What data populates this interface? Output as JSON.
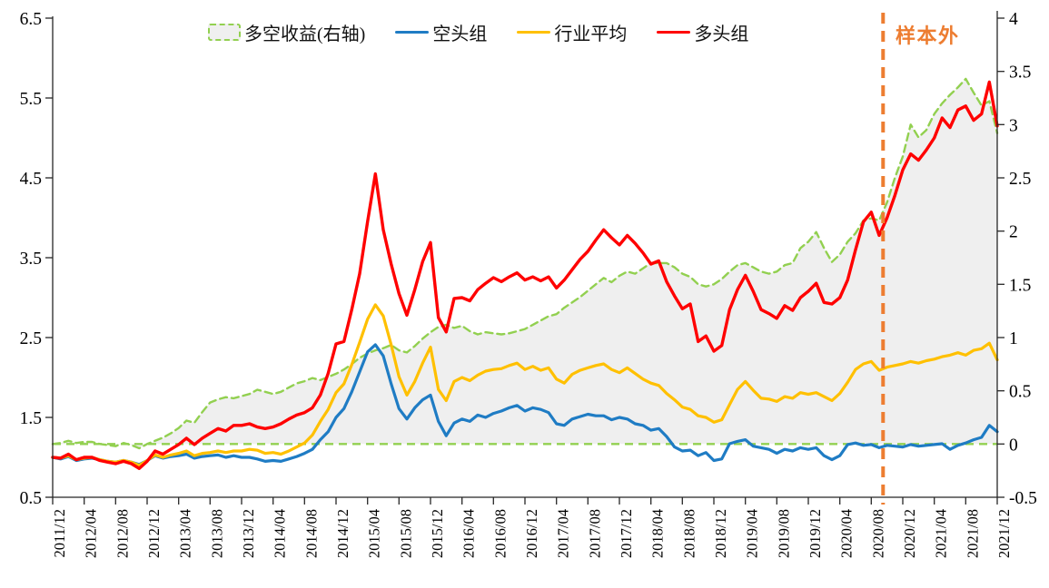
{
  "chart_data": {
    "type": "line",
    "title": "",
    "frequency": "monthly",
    "grid": false,
    "legend_position": "top",
    "background": "#ffffff",
    "months": [
      "2011/12",
      "2012/01",
      "2012/02",
      "2012/03",
      "2012/04",
      "2012/05",
      "2012/06",
      "2012/07",
      "2012/08",
      "2012/09",
      "2012/10",
      "2012/11",
      "2012/12",
      "2013/01",
      "2013/02",
      "2013/03",
      "2013/04",
      "2013/05",
      "2013/06",
      "2013/07",
      "2013/08",
      "2013/09",
      "2013/10",
      "2013/11",
      "2013/12",
      "2014/01",
      "2014/02",
      "2014/03",
      "2014/04",
      "2014/05",
      "2014/06",
      "2014/07",
      "2014/08",
      "2014/09",
      "2014/10",
      "2014/11",
      "2014/12",
      "2015/01",
      "2015/02",
      "2015/03",
      "2015/04",
      "2015/05",
      "2015/06",
      "2015/07",
      "2015/08",
      "2015/09",
      "2015/10",
      "2015/11",
      "2015/12",
      "2016/01",
      "2016/02",
      "2016/03",
      "2016/04",
      "2016/05",
      "2016/06",
      "2016/07",
      "2016/08",
      "2016/09",
      "2016/10",
      "2016/11",
      "2016/12",
      "2017/01",
      "2017/02",
      "2017/03",
      "2017/04",
      "2017/05",
      "2017/06",
      "2017/07",
      "2017/08",
      "2017/09",
      "2017/10",
      "2017/11",
      "2017/12",
      "2018/01",
      "2018/02",
      "2018/03",
      "2018/04",
      "2018/05",
      "2018/06",
      "2018/07",
      "2018/08",
      "2018/09",
      "2018/10",
      "2018/11",
      "2018/12",
      "2019/01",
      "2019/02",
      "2019/03",
      "2019/04",
      "2019/05",
      "2019/06",
      "2019/07",
      "2019/08",
      "2019/09",
      "2019/10",
      "2019/11",
      "2019/12",
      "2020/01",
      "2020/02",
      "2020/03",
      "2020/04",
      "2020/05",
      "2020/06",
      "2020/07",
      "2020/08",
      "2020/09",
      "2020/10",
      "2020/11",
      "2020/12",
      "2021/01",
      "2021/02",
      "2021/03",
      "2021/04",
      "2021/05",
      "2021/06",
      "2021/07",
      "2021/08",
      "2021/09",
      "2021/10",
      "2021/11",
      "2021/12"
    ],
    "x_tick_step": 4,
    "left_axis": {
      "min": 0.5,
      "max": 6.5,
      "ticks": [
        0.5,
        1.5,
        2.5,
        3.5,
        4.5,
        5.5,
        6.5
      ]
    },
    "right_axis": {
      "min": -0.5,
      "max": 4,
      "ticks": [
        -0.5,
        0,
        0.5,
        1,
        1.5,
        2,
        2.5,
        3,
        3.5,
        4
      ]
    },
    "baseline_right": 0,
    "sample_split": {
      "label": "样本外",
      "color": "#ED7D31",
      "month_index": 105.5,
      "between": [
        "2020/09",
        "2020/10"
      ]
    },
    "series": [
      {
        "name": "多空收益(右轴)",
        "key": "long-short-return",
        "axis": "right",
        "style": "dashed-area",
        "color": "#92D050",
        "fill": "#EFEFEF",
        "values": [
          0.0,
          0.01,
          0.03,
          0.01,
          0.02,
          0.02,
          0.0,
          -0.01,
          -0.02,
          0.01,
          -0.01,
          -0.04,
          0.0,
          0.03,
          0.06,
          0.1,
          0.15,
          0.22,
          0.2,
          0.3,
          0.39,
          0.42,
          0.44,
          0.43,
          0.45,
          0.47,
          0.51,
          0.49,
          0.47,
          0.49,
          0.53,
          0.57,
          0.59,
          0.62,
          0.6,
          0.63,
          0.66,
          0.7,
          0.75,
          0.81,
          0.85,
          0.88,
          0.9,
          0.93,
          0.88,
          0.86,
          0.92,
          0.99,
          1.05,
          1.1,
          1.12,
          1.09,
          1.11,
          1.06,
          1.03,
          1.05,
          1.04,
          1.03,
          1.04,
          1.06,
          1.08,
          1.12,
          1.16,
          1.2,
          1.22,
          1.28,
          1.33,
          1.38,
          1.44,
          1.5,
          1.56,
          1.52,
          1.58,
          1.62,
          1.6,
          1.65,
          1.7,
          1.7,
          1.7,
          1.66,
          1.6,
          1.57,
          1.5,
          1.48,
          1.5,
          1.55,
          1.62,
          1.68,
          1.7,
          1.66,
          1.62,
          1.6,
          1.62,
          1.68,
          1.7,
          1.84,
          1.9,
          1.99,
          1.84,
          1.71,
          1.78,
          1.9,
          1.98,
          2.1,
          2.12,
          2.1,
          2.27,
          2.5,
          2.7,
          3.0,
          2.88,
          2.95,
          3.1,
          3.2,
          3.28,
          3.35,
          3.43,
          3.3,
          3.18,
          3.22,
          2.92
        ]
      },
      {
        "name": "空头组",
        "key": "short-group",
        "axis": "left",
        "style": "solid",
        "color": "#1F7CC4",
        "values": [
          1.0,
          0.98,
          1.01,
          0.96,
          0.98,
          0.99,
          0.97,
          0.95,
          0.94,
          0.96,
          0.94,
          0.91,
          0.96,
          1.02,
          0.99,
          1.01,
          1.02,
          1.04,
          0.99,
          1.01,
          1.02,
          1.03,
          1.0,
          1.02,
          1.0,
          1.0,
          0.98,
          0.95,
          0.96,
          0.95,
          0.98,
          1.01,
          1.05,
          1.1,
          1.22,
          1.32,
          1.5,
          1.61,
          1.82,
          2.07,
          2.32,
          2.41,
          2.27,
          1.92,
          1.61,
          1.48,
          1.62,
          1.72,
          1.78,
          1.45,
          1.27,
          1.43,
          1.48,
          1.45,
          1.53,
          1.5,
          1.55,
          1.58,
          1.62,
          1.65,
          1.58,
          1.62,
          1.6,
          1.56,
          1.42,
          1.4,
          1.48,
          1.51,
          1.54,
          1.52,
          1.52,
          1.47,
          1.5,
          1.48,
          1.42,
          1.4,
          1.34,
          1.36,
          1.26,
          1.13,
          1.08,
          1.09,
          1.02,
          1.06,
          0.96,
          0.98,
          1.17,
          1.2,
          1.22,
          1.14,
          1.12,
          1.1,
          1.05,
          1.1,
          1.08,
          1.12,
          1.1,
          1.12,
          1.02,
          0.97,
          1.02,
          1.16,
          1.18,
          1.15,
          1.16,
          1.12,
          1.15,
          1.14,
          1.13,
          1.16,
          1.14,
          1.15,
          1.16,
          1.17,
          1.1,
          1.15,
          1.18,
          1.22,
          1.25,
          1.4,
          1.32
        ]
      },
      {
        "name": "行业平均",
        "key": "industry-average",
        "axis": "left",
        "style": "solid",
        "color": "#FFC000",
        "values": [
          1.0,
          0.99,
          1.02,
          0.97,
          0.99,
          1.0,
          0.97,
          0.95,
          0.94,
          0.96,
          0.94,
          0.9,
          0.96,
          1.03,
          1.0,
          1.03,
          1.05,
          1.08,
          1.02,
          1.05,
          1.06,
          1.08,
          1.06,
          1.08,
          1.08,
          1.1,
          1.09,
          1.05,
          1.06,
          1.04,
          1.08,
          1.13,
          1.18,
          1.28,
          1.45,
          1.6,
          1.81,
          1.92,
          2.16,
          2.44,
          2.73,
          2.91,
          2.77,
          2.41,
          2.01,
          1.78,
          1.95,
          2.18,
          2.38,
          1.85,
          1.71,
          1.95,
          2.0,
          1.96,
          2.03,
          2.08,
          2.1,
          2.11,
          2.15,
          2.18,
          2.1,
          2.14,
          2.09,
          2.12,
          1.98,
          1.93,
          2.04,
          2.09,
          2.12,
          2.15,
          2.17,
          2.1,
          2.06,
          2.12,
          2.05,
          1.98,
          1.93,
          1.9,
          1.8,
          1.72,
          1.63,
          1.6,
          1.52,
          1.5,
          1.44,
          1.47,
          1.66,
          1.85,
          1.95,
          1.84,
          1.74,
          1.73,
          1.7,
          1.76,
          1.74,
          1.81,
          1.79,
          1.81,
          1.76,
          1.71,
          1.8,
          1.94,
          2.1,
          2.17,
          2.2,
          2.09,
          2.13,
          2.15,
          2.17,
          2.2,
          2.18,
          2.21,
          2.23,
          2.26,
          2.28,
          2.31,
          2.28,
          2.34,
          2.36,
          2.43,
          2.22
        ]
      },
      {
        "name": "多头组",
        "key": "long-group",
        "axis": "left",
        "style": "solid",
        "color": "#FF0000",
        "values": [
          1.0,
          0.99,
          1.04,
          0.97,
          1.0,
          1.0,
          0.96,
          0.94,
          0.92,
          0.95,
          0.92,
          0.86,
          0.95,
          1.08,
          1.04,
          1.1,
          1.16,
          1.24,
          1.16,
          1.24,
          1.3,
          1.36,
          1.33,
          1.4,
          1.4,
          1.42,
          1.38,
          1.36,
          1.38,
          1.42,
          1.48,
          1.53,
          1.56,
          1.62,
          1.78,
          2.05,
          2.42,
          2.45,
          2.85,
          3.3,
          3.95,
          4.55,
          3.85,
          3.42,
          3.05,
          2.78,
          3.1,
          3.45,
          3.69,
          2.75,
          2.57,
          2.99,
          3.0,
          2.96,
          3.1,
          3.18,
          3.25,
          3.2,
          3.26,
          3.31,
          3.22,
          3.26,
          3.21,
          3.26,
          3.12,
          3.22,
          3.35,
          3.48,
          3.58,
          3.72,
          3.85,
          3.75,
          3.66,
          3.78,
          3.68,
          3.56,
          3.42,
          3.46,
          3.2,
          3.02,
          2.86,
          2.92,
          2.45,
          2.52,
          2.33,
          2.4,
          2.85,
          3.1,
          3.28,
          3.08,
          2.85,
          2.8,
          2.74,
          2.9,
          2.84,
          3.0,
          3.08,
          3.18,
          2.94,
          2.92,
          3.0,
          3.22,
          3.6,
          3.95,
          4.07,
          3.78,
          4.0,
          4.28,
          4.6,
          4.8,
          4.72,
          4.85,
          5.0,
          5.25,
          5.13,
          5.35,
          5.4,
          5.22,
          5.3,
          5.7,
          5.15
        ]
      }
    ]
  }
}
